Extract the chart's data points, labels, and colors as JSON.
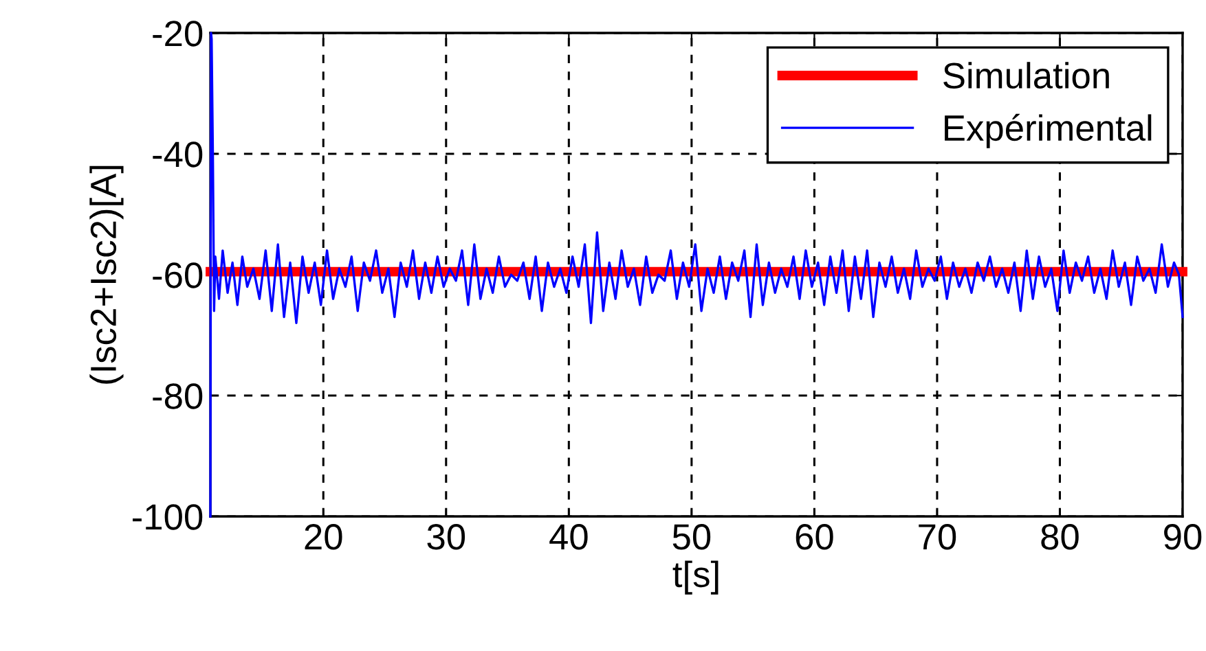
{
  "chart_data": {
    "type": "line",
    "xlabel": "t[s]",
    "ylabel": "(Isc2+Isc2)[A]",
    "xlim": [
      10.8,
      90
    ],
    "ylim": [
      -100,
      -20
    ],
    "xticks": [
      20,
      30,
      40,
      50,
      60,
      70,
      80,
      90
    ],
    "yticks": [
      -100,
      -80,
      -60,
      -40,
      -20
    ],
    "grid": true,
    "legend": "top right",
    "line_style": "solid",
    "series": [
      {
        "name": "Simulation",
        "color": "#ff0000",
        "x": [
          10.8,
          90
        ],
        "values": [
          -59.5,
          -59.5
        ]
      },
      {
        "name": "Expérimental",
        "color": "#0000ff",
        "x": [
          10.8,
          10.85,
          10.9,
          11.0,
          11.1,
          11.2,
          11.5,
          11.8,
          12.2,
          12.6,
          13.0,
          13.4,
          13.8,
          14.3,
          14.8,
          15.3,
          15.8,
          16.3,
          16.8,
          17.3,
          17.8,
          18.3,
          18.8,
          19.3,
          19.8,
          20.3,
          20.8,
          21.3,
          21.8,
          22.3,
          22.8,
          23.3,
          23.8,
          24.3,
          24.8,
          25.3,
          25.8,
          26.3,
          26.8,
          27.3,
          27.8,
          28.3,
          28.8,
          29.3,
          29.8,
          30.3,
          30.8,
          31.3,
          31.8,
          32.3,
          32.8,
          33.3,
          33.8,
          34.3,
          34.8,
          35.3,
          35.8,
          36.3,
          36.8,
          37.3,
          37.8,
          38.3,
          38.8,
          39.3,
          39.8,
          40.3,
          40.8,
          41.3,
          41.8,
          42.3,
          42.8,
          43.3,
          43.8,
          44.3,
          44.8,
          45.3,
          45.8,
          46.3,
          46.8,
          47.3,
          47.8,
          48.3,
          48.8,
          49.3,
          49.8,
          50.3,
          50.8,
          51.3,
          51.8,
          52.3,
          52.8,
          53.3,
          53.8,
          54.3,
          54.8,
          55.3,
          55.8,
          56.3,
          56.8,
          57.3,
          57.8,
          58.3,
          58.8,
          59.3,
          59.8,
          60.3,
          60.8,
          61.3,
          61.8,
          62.3,
          62.8,
          63.3,
          63.8,
          64.3,
          64.8,
          65.3,
          65.8,
          66.3,
          66.8,
          67.3,
          67.8,
          68.3,
          68.8,
          69.3,
          69.8,
          70.3,
          70.8,
          71.3,
          71.8,
          72.3,
          72.8,
          73.3,
          73.8,
          74.3,
          74.8,
          75.3,
          75.8,
          76.3,
          76.8,
          77.3,
          77.8,
          78.3,
          78.8,
          79.3,
          79.8,
          80.3,
          80.8,
          81.3,
          81.8,
          82.3,
          82.8,
          83.3,
          83.8,
          84.3,
          84.8,
          85.3,
          85.8,
          86.3,
          86.8,
          87.3,
          87.8,
          88.3,
          88.8,
          89.3,
          89.7,
          90
        ],
        "values": [
          -100,
          -20,
          -21,
          -40,
          -66,
          -57,
          -64,
          -56,
          -63,
          -58,
          -65,
          -57,
          -62,
          -59,
          -64,
          -56,
          -66,
          -55,
          -67,
          -58,
          -68,
          -57,
          -63,
          -58,
          -65,
          -56,
          -64,
          -59,
          -62,
          -57,
          -66,
          -58,
          -61,
          -56,
          -63,
          -59,
          -67,
          -58,
          -62,
          -56,
          -64,
          -58,
          -63,
          -57,
          -62,
          -59,
          -61,
          -56,
          -65,
          -55,
          -64,
          -59,
          -63,
          -57,
          -62,
          -60,
          -61,
          -58,
          -64,
          -57,
          -66,
          -58,
          -62,
          -59,
          -63,
          -57,
          -62,
          -55,
          -68,
          -53,
          -66,
          -58,
          -64,
          -56,
          -62,
          -59,
          -65,
          -57,
          -63,
          -60,
          -61,
          -56,
          -64,
          -58,
          -62,
          -55,
          -66,
          -59,
          -63,
          -57,
          -64,
          -58,
          -61,
          -56,
          -67,
          -55,
          -65,
          -58,
          -63,
          -59,
          -62,
          -57,
          -64,
          -56,
          -62,
          -58,
          -65,
          -57,
          -63,
          -56,
          -66,
          -57,
          -64,
          -56,
          -67,
          -58,
          -62,
          -57,
          -63,
          -59,
          -64,
          -56,
          -62,
          -59,
          -61,
          -57,
          -64,
          -58,
          -62,
          -59,
          -63,
          -58,
          -61,
          -57,
          -62,
          -59,
          -63,
          -58,
          -66,
          -56,
          -64,
          -57,
          -62,
          -59,
          -66,
          -56,
          -63,
          -58,
          -61,
          -57,
          -63,
          -59,
          -64,
          -56,
          -62,
          -58,
          -65,
          -57,
          -61,
          -59,
          -63,
          -55,
          -62,
          -58,
          -60,
          -67
        ]
      }
    ]
  }
}
